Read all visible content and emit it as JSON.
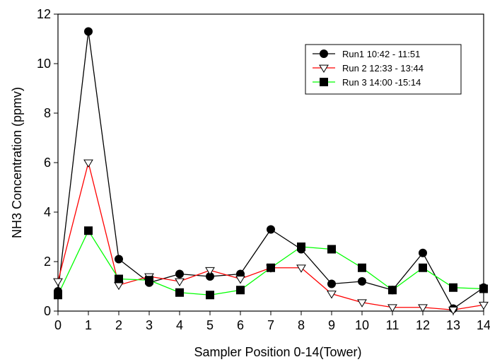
{
  "chart_data": {
    "type": "line",
    "title": "",
    "xlabel": "Sampler Position 0-14(Tower)",
    "ylabel": "NH3 Concentration (ppmv)",
    "xlim": [
      0,
      14
    ],
    "ylim": [
      0,
      12
    ],
    "x": [
      0,
      1,
      2,
      3,
      4,
      5,
      6,
      7,
      8,
      9,
      10,
      11,
      12,
      13,
      14
    ],
    "x_ticks": [
      "0",
      "1",
      "2",
      "3",
      "4",
      "5",
      "6",
      "7",
      "8",
      "9",
      "10",
      "11",
      "12",
      "13",
      "14"
    ],
    "y_ticks": [
      "0",
      "2",
      "4",
      "6",
      "8",
      "10",
      "12"
    ],
    "grid": false,
    "legend_position": "top-right",
    "series": [
      {
        "name": "Run1 10:42 - 11:51",
        "line_color": "#000000",
        "marker": "circle",
        "marker_fill": "#000000",
        "values": [
          0.8,
          11.3,
          2.1,
          1.15,
          1.5,
          1.4,
          1.5,
          3.3,
          2.5,
          1.1,
          1.2,
          0.85,
          2.35,
          0.1,
          0.95
        ]
      },
      {
        "name": "Run 2 12:33 - 13:44",
        "line_color": "#ff0000",
        "marker": "triangle-down",
        "marker_fill": "#ffffff",
        "values": [
          1.2,
          6.0,
          1.05,
          1.4,
          1.2,
          1.65,
          1.3,
          1.75,
          1.75,
          0.7,
          0.35,
          0.15,
          0.15,
          0.05,
          0.25
        ]
      },
      {
        "name": "Run 3 14:00 -15:14",
        "line_color": "#00ff00",
        "marker": "square",
        "marker_fill": "#000000",
        "values": [
          0.65,
          3.25,
          1.3,
          1.25,
          0.75,
          0.65,
          0.85,
          1.75,
          2.6,
          2.5,
          1.75,
          0.85,
          1.75,
          0.95,
          0.9
        ]
      }
    ]
  }
}
